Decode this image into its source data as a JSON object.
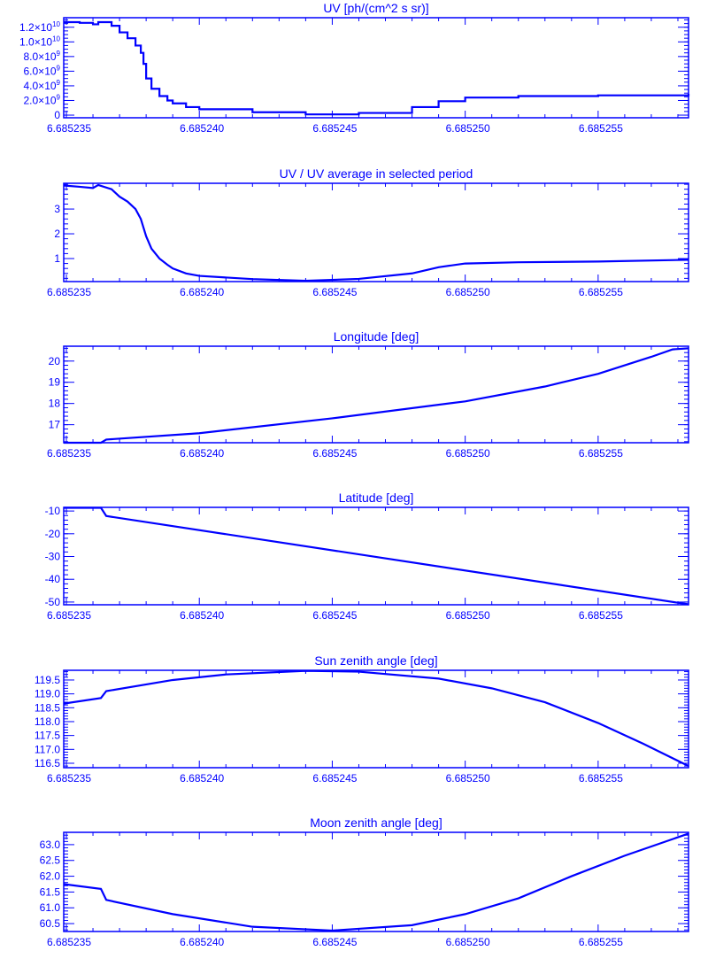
{
  "color": "#0000ff",
  "chart_data": [
    {
      "type": "line",
      "title": "UV [ph/(cm^2 s sr)]",
      "xlim": [
        6.6852349,
        6.6852584
      ],
      "ylim": [
        -360000000.0,
        13300000000.0
      ],
      "xticks": [
        "6.685235",
        "6.685240",
        "6.685245",
        "6.685250",
        "6.685255"
      ],
      "xtick_values": [
        6.685235,
        6.68524,
        6.685245,
        6.68525,
        6.685255
      ],
      "yticks": [
        {
          "v": 0,
          "label": "0",
          "exp": ""
        },
        {
          "v": 2000000000.0,
          "label": "2.0×10",
          "exp": "9"
        },
        {
          "v": 4000000000.0,
          "label": "4.0×10",
          "exp": "9"
        },
        {
          "v": 6000000000.0,
          "label": "6.0×10",
          "exp": "9"
        },
        {
          "v": 8000000000.0,
          "label": "8.0×10",
          "exp": "9"
        },
        {
          "v": 10000000000.0,
          "label": "1.0×10",
          "exp": "10"
        },
        {
          "v": 12000000000.0,
          "label": "1.2×10",
          "exp": "10"
        }
      ],
      "yminor": 500000000.0,
      "step": true,
      "x": [
        6.6852349,
        6.6852355,
        6.685236,
        6.6852362,
        6.6852367,
        6.685237,
        6.6852373,
        6.6852376,
        6.6852378,
        6.6852379,
        6.685238,
        6.6852382,
        6.6852385,
        6.6852388,
        6.685239,
        6.6852395,
        6.68524,
        6.685242,
        6.685244,
        6.685246,
        6.685248,
        6.685249,
        6.68525,
        6.685252,
        6.685255,
        6.6852584
      ],
      "y": [
        12700000000.0,
        12600000000.0,
        12400000000.0,
        12700000000.0,
        12200000000.0,
        11300000000.0,
        10500000000.0,
        9500000000.0,
        8500000000.0,
        7000000000.0,
        5000000000.0,
        3600000000.0,
        2600000000.0,
        2000000000.0,
        1600000000.0,
        1100000000.0,
        800000000.0,
        400000000.0,
        100000000.0,
        300000000.0,
        1100000000.0,
        1900000000.0,
        2400000000.0,
        2600000000.0,
        2700000000.0,
        2900000000.0
      ]
    },
    {
      "type": "line",
      "title": "UV / UV average in selected period",
      "xlim": [
        6.6852349,
        6.6852584
      ],
      "ylim": [
        0.07,
        4.04
      ],
      "xticks": [
        "6.685235",
        "6.685240",
        "6.685245",
        "6.685250",
        "6.685255"
      ],
      "xtick_values": [
        6.685235,
        6.68524,
        6.685245,
        6.68525,
        6.685255
      ],
      "yticks": [
        {
          "v": 1,
          "label": "1",
          "exp": ""
        },
        {
          "v": 2,
          "label": "2",
          "exp": ""
        },
        {
          "v": 3,
          "label": "3",
          "exp": ""
        }
      ],
      "yminor": 0.2,
      "x": [
        6.6852349,
        6.6852355,
        6.685236,
        6.6852362,
        6.6852367,
        6.685237,
        6.6852373,
        6.6852376,
        6.6852378,
        6.685238,
        6.6852382,
        6.6852385,
        6.6852388,
        6.685239,
        6.6852395,
        6.68524,
        6.685242,
        6.685244,
        6.685246,
        6.685248,
        6.685249,
        6.68525,
        6.685252,
        6.685255,
        6.6852584
      ],
      "y": [
        3.95,
        3.9,
        3.85,
        3.97,
        3.8,
        3.5,
        3.3,
        3.0,
        2.6,
        1.9,
        1.4,
        1.0,
        0.75,
        0.6,
        0.4,
        0.3,
        0.17,
        0.1,
        0.18,
        0.4,
        0.65,
        0.8,
        0.85,
        0.88,
        0.95
      ]
    },
    {
      "type": "line",
      "title": "Longitude [deg]",
      "xlim": [
        6.6852349,
        6.6852584
      ],
      "ylim": [
        16.15,
        20.7
      ],
      "xticks": [
        "6.685235",
        "6.685240",
        "6.685245",
        "6.685250",
        "6.685255"
      ],
      "xtick_values": [
        6.685235,
        6.68524,
        6.685245,
        6.68525,
        6.685255
      ],
      "yticks": [
        {
          "v": 17,
          "label": "17",
          "exp": ""
        },
        {
          "v": 18,
          "label": "18",
          "exp": ""
        },
        {
          "v": 19,
          "label": "19",
          "exp": ""
        },
        {
          "v": 20,
          "label": "20",
          "exp": ""
        }
      ],
      "yminor": 0.2,
      "x": [
        6.6852349,
        6.6852363,
        6.6852365,
        6.68524,
        6.685245,
        6.68525,
        6.685253,
        6.685255,
        6.685257,
        6.6852578,
        6.6852584
      ],
      "y": [
        16.15,
        16.15,
        16.3,
        16.6,
        17.3,
        18.1,
        18.8,
        19.4,
        20.2,
        20.55,
        20.6
      ]
    },
    {
      "type": "line",
      "title": "Latitude [deg]",
      "xlim": [
        6.6852349,
        6.6852584
      ],
      "ylim": [
        -51.2,
        -8.4
      ],
      "xticks": [
        "6.685235",
        "6.685240",
        "6.685245",
        "6.685250",
        "6.685255"
      ],
      "xtick_values": [
        6.685235,
        6.68524,
        6.685245,
        6.68525,
        6.685255
      ],
      "yticks": [
        {
          "v": -50,
          "label": "-50",
          "exp": ""
        },
        {
          "v": -40,
          "label": "-40",
          "exp": ""
        },
        {
          "v": -30,
          "label": "-30",
          "exp": ""
        },
        {
          "v": -20,
          "label": "-20",
          "exp": ""
        },
        {
          "v": -10,
          "label": "-10",
          "exp": ""
        }
      ],
      "yminor": 2,
      "x": [
        6.6852349,
        6.6852363,
        6.6852365,
        6.685258,
        6.6852584
      ],
      "y": [
        -8.6,
        -8.6,
        -12.2,
        -50.3,
        -51
      ]
    },
    {
      "type": "line",
      "title": "Sun zenith angle [deg]",
      "xlim": [
        6.6852349,
        6.6852584
      ],
      "ylim": [
        116.34,
        119.85
      ],
      "xticks": [
        "6.685235",
        "6.685240",
        "6.685245",
        "6.685250",
        "6.685255"
      ],
      "xtick_values": [
        6.685235,
        6.68524,
        6.685245,
        6.68525,
        6.685255
      ],
      "yticks": [
        {
          "v": 116.5,
          "label": "116.5",
          "exp": ""
        },
        {
          "v": 117,
          "label": "117.0",
          "exp": ""
        },
        {
          "v": 117.5,
          "label": "117.5",
          "exp": ""
        },
        {
          "v": 118,
          "label": "118.0",
          "exp": ""
        },
        {
          "v": 118.5,
          "label": "118.5",
          "exp": ""
        },
        {
          "v": 119,
          "label": "119.0",
          "exp": ""
        },
        {
          "v": 119.5,
          "label": "119.5",
          "exp": ""
        }
      ],
      "yminor": 0.1,
      "x": [
        6.6852349,
        6.6852363,
        6.6852365,
        6.685239,
        6.685241,
        6.685244,
        6.685246,
        6.685249,
        6.685251,
        6.685253,
        6.685255,
        6.6852567,
        6.6852584
      ],
      "y": [
        118.65,
        118.85,
        119.1,
        119.5,
        119.7,
        119.83,
        119.8,
        119.55,
        119.2,
        118.7,
        117.95,
        117.2,
        116.4
      ]
    },
    {
      "type": "line",
      "title": "Moon zenith angle [deg]",
      "xlim": [
        6.6852349,
        6.6852584
      ],
      "ylim": [
        60.25,
        63.39
      ],
      "xticks": [
        "6.685235",
        "6.685240",
        "6.685245",
        "6.685250",
        "6.685255"
      ],
      "xtick_values": [
        6.685235,
        6.68524,
        6.685245,
        6.68525,
        6.685255
      ],
      "yticks": [
        {
          "v": 60.5,
          "label": "60.5",
          "exp": ""
        },
        {
          "v": 61,
          "label": "61.0",
          "exp": ""
        },
        {
          "v": 61.5,
          "label": "61.5",
          "exp": ""
        },
        {
          "v": 62,
          "label": "62.0",
          "exp": ""
        },
        {
          "v": 62.5,
          "label": "62.5",
          "exp": ""
        },
        {
          "v": 63,
          "label": "63.0",
          "exp": ""
        }
      ],
      "yminor": 0.1,
      "x": [
        6.6852349,
        6.6852363,
        6.6852365,
        6.685239,
        6.685242,
        6.685245,
        6.685248,
        6.68525,
        6.685252,
        6.685254,
        6.685256,
        6.6852584
      ],
      "y": [
        61.75,
        61.6,
        61.25,
        60.8,
        60.4,
        60.28,
        60.45,
        60.8,
        61.3,
        62.0,
        62.65,
        63.35
      ]
    }
  ]
}
